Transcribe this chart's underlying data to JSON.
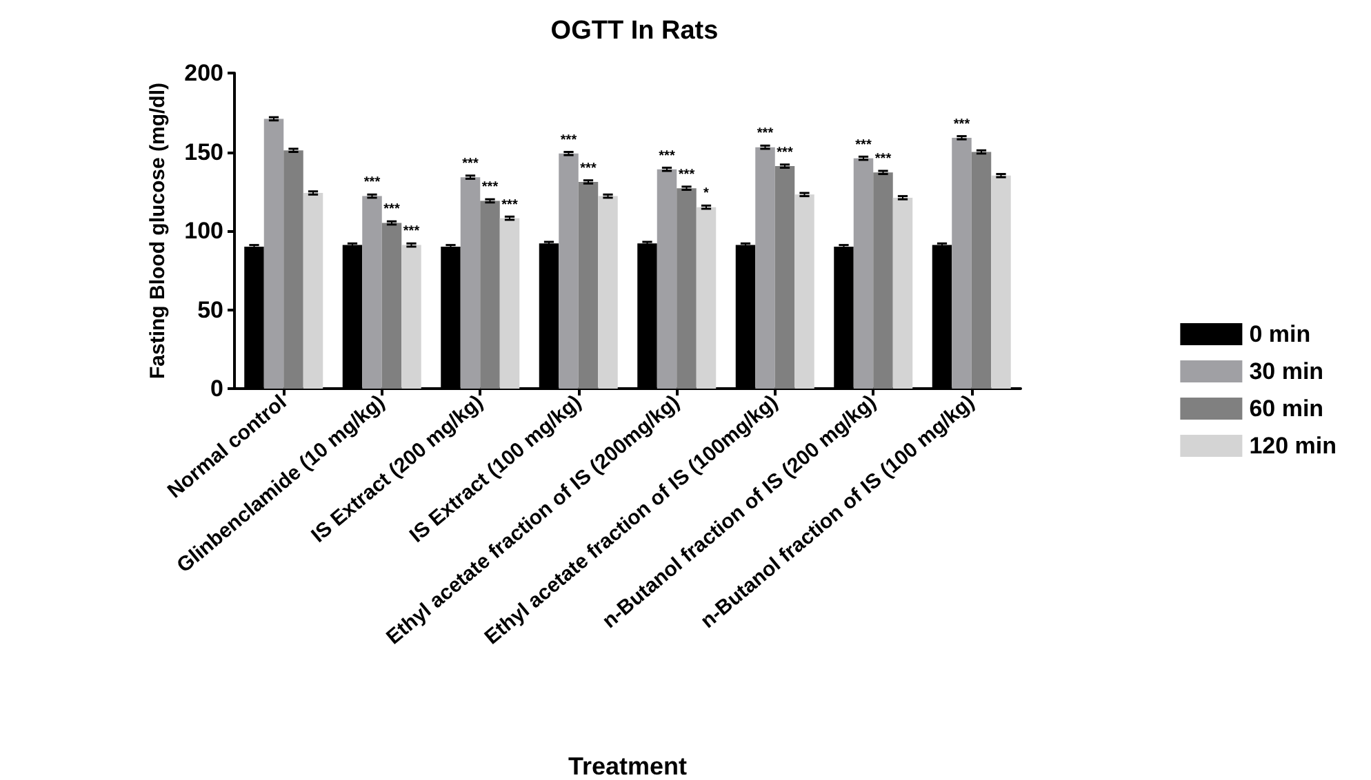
{
  "chart_data": {
    "type": "bar",
    "title": "OGTT In Rats",
    "xlabel": "Treatment",
    "ylabel": "Fasting Blood glucose (mg/dl)",
    "categories": [
      "Normal control",
      "Glinbenclamide (10 mg/kg)",
      "IS Extract (200 mg/kg)",
      "IS Extract (100 mg/kg)",
      "Ethyl acetate fraction of IS (200mg/kg)",
      "Ethyl acetate fraction of IS (100mg/kg)",
      "n-Butanol fraction of IS (200 mg/kg)",
      "n-Butanol fraction of IS (100 mg/kg)"
    ],
    "series": [
      {
        "name": "0 min",
        "color": "#000000",
        "values": [
          90,
          91,
          90,
          92,
          92,
          91,
          90,
          91
        ],
        "errors": [
          1,
          1,
          1,
          1,
          1,
          1,
          1,
          1
        ]
      },
      {
        "name": "30 min",
        "color": "#a0a0a4",
        "values": [
          171,
          122,
          134,
          149,
          139,
          153,
          146,
          159
        ],
        "errors": [
          1,
          1,
          1,
          1,
          1,
          1,
          1,
          1
        ]
      },
      {
        "name": "60 min",
        "color": "#808080",
        "values": [
          151,
          105,
          119,
          131,
          127,
          141,
          137,
          150
        ],
        "errors": [
          1,
          1,
          1,
          1,
          1,
          1,
          1,
          1
        ]
      },
      {
        "name": "120 min",
        "color": "#d4d4d4",
        "values": [
          124,
          91,
          108,
          122,
          115,
          123,
          121,
          135
        ],
        "errors": [
          1,
          1,
          1,
          1,
          1,
          1,
          1,
          1
        ]
      }
    ],
    "ylim": [
      0,
      200
    ],
    "yticks": [
      0,
      50,
      100,
      150,
      200
    ],
    "grid": false,
    "legend": "right",
    "annotations": [
      {
        "text": "***",
        "x": "Glinbenclamide (10 mg/kg)",
        "y": 126
      },
      {
        "text": "***",
        "x": "Glinbenclamide (10 mg/kg)",
        "y": 109
      },
      {
        "text": "***",
        "x": "Glinbenclamide (10 mg/kg)",
        "y": 95
      },
      {
        "text": "***",
        "x": "IS Extract (200 mg/kg)",
        "y": 138
      },
      {
        "text": "***",
        "x": "IS Extract (200 mg/kg)",
        "y": 123
      },
      {
        "text": "***",
        "x": "IS Extract (200 mg/kg)",
        "y": 112
      },
      {
        "text": "***",
        "x": "IS Extract (100 mg/kg)",
        "y": 153
      },
      {
        "text": "***",
        "x": "IS Extract (100 mg/kg)",
        "y": 135
      },
      {
        "text": "***",
        "x": "Ethyl acetate fraction of IS (200mg/kg)",
        "y": 143
      },
      {
        "text": "***",
        "x": "Ethyl acetate fraction of IS (200mg/kg)",
        "y": 131
      },
      {
        "text": "*",
        "x": "Ethyl acetate fraction of IS (200mg/kg)",
        "y": 119
      },
      {
        "text": "***",
        "x": "Ethyl acetate fraction of IS (100mg/kg)",
        "y": 157
      },
      {
        "text": "***",
        "x": "Ethyl acetate fraction of IS (100mg/kg)",
        "y": 145
      },
      {
        "text": "***",
        "x": "n-Butanol fraction of IS (200 mg/kg)",
        "y": 150
      },
      {
        "text": "***",
        "x": "n-Butanol fraction of IS (200 mg/kg)",
        "y": 141
      },
      {
        "text": "***",
        "x": "n-Butanol fraction of IS (100 mg/kg)",
        "y": 163
      }
    ]
  }
}
